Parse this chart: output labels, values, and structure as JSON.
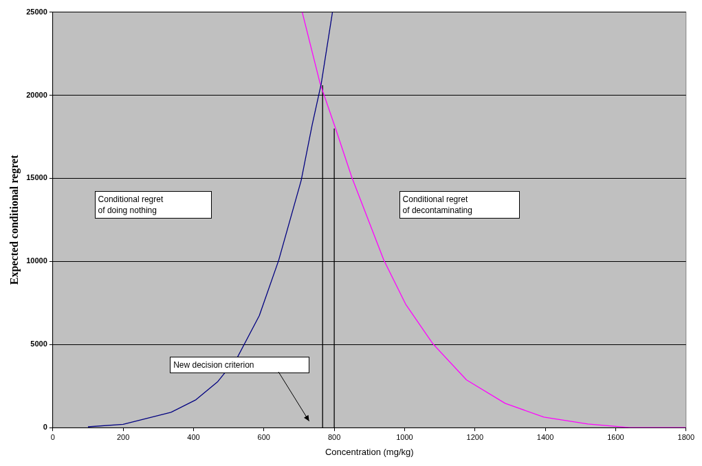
{
  "chart_data": {
    "type": "line",
    "xlabel": "Concentration (mg/kg)",
    "ylabel": "Expected conditional regret",
    "xlim": [
      0,
      1800
    ],
    "xticks": [
      0,
      200,
      400,
      600,
      800,
      1000,
      1200,
      1400,
      1600,
      1800
    ],
    "ylim": [
      0,
      25000
    ],
    "yticks": [
      0,
      5000,
      10000,
      15000,
      20000,
      25000
    ],
    "grid": "y",
    "legend": false,
    "marker": "none",
    "series": [
      {
        "color": "#000080",
        "x": [
          100,
          200,
          336,
          407,
          469,
          525,
          587,
          642,
          706,
          737,
          763,
          795
        ],
        "values": [
          50,
          200,
          920,
          1680,
          2770,
          4240,
          6740,
          10060,
          14870,
          18190,
          20690,
          25000
        ]
      },
      {
        "color": "#ff00ff",
        "x": [
          709,
          760,
          803,
          850,
          941,
          1003,
          1081,
          1176,
          1286,
          1396,
          1521,
          1640,
          1800
        ],
        "values": [
          25000,
          20690,
          18050,
          15060,
          10080,
          7430,
          5030,
          2870,
          1460,
          630,
          220,
          0,
          0
        ]
      },
      {
        "color": "#000000",
        "x": [
          767,
          767
        ],
        "values": [
          0,
          20600
        ]
      },
      {
        "color": "#000000",
        "x": [
          800,
          800
        ],
        "values": [
          0,
          18000
        ]
      }
    ],
    "annotations": [
      "Conditional regret\nof doing nothing",
      "Conditional regret\nof decontaminating",
      "New decision criterion"
    ]
  }
}
